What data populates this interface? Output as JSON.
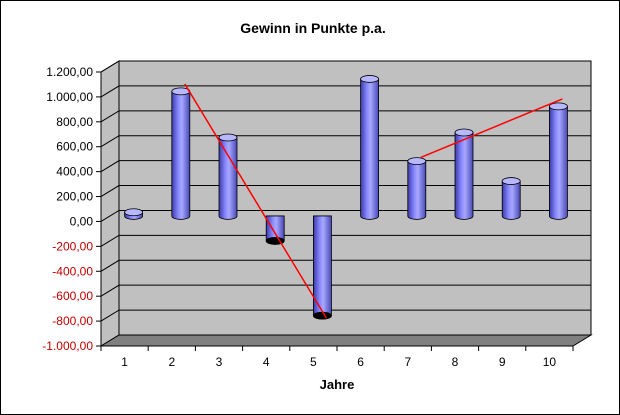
{
  "chart_data": {
    "type": "bar",
    "title": "Gewinn in Punkte p.a.",
    "xlabel": "Jahre",
    "ylabel": "",
    "categories": [
      "1",
      "2",
      "3",
      "4",
      "5",
      "6",
      "7",
      "8",
      "9",
      "10"
    ],
    "series": [
      {
        "values": [
          30,
          1000,
          630,
          -200,
          -800,
          1100,
          440,
          670,
          280,
          880
        ]
      }
    ],
    "ylim": [
      -1000,
      1200
    ],
    "yticks": [
      {
        "value": 1200,
        "label": "1.200,00"
      },
      {
        "value": 1000,
        "label": "1.000,00"
      },
      {
        "value": 800,
        "label": "800,00"
      },
      {
        "value": 600,
        "label": "600,00"
      },
      {
        "value": 400,
        "label": "400,00"
      },
      {
        "value": 200,
        "label": "200,00"
      },
      {
        "value": 0,
        "label": "0,00"
      },
      {
        "value": -200,
        "label": "-200,00"
      },
      {
        "value": -400,
        "label": "-400,00"
      },
      {
        "value": -600,
        "label": "-600,00"
      },
      {
        "value": -800,
        "label": "-800,00"
      },
      {
        "value": -1000,
        "label": "-1.000,00"
      }
    ],
    "grid": true,
    "trendlines": [
      {
        "from": {
          "x": 2,
          "y": 1060
        },
        "to": {
          "x": 5,
          "y": -820
        }
      },
      {
        "from": {
          "x": 7,
          "y": 470
        },
        "to": {
          "x": 10,
          "y": 940
        }
      }
    ],
    "colors": {
      "bar": "#8080ff",
      "bar_dark": "#3a3aa8",
      "bar_top": "#b8b8ff",
      "wall": "#c0c0c0",
      "floor": "#808080",
      "trendline": "#ff0000",
      "negative_label": "#c00000",
      "positive_label": "#000000"
    }
  }
}
